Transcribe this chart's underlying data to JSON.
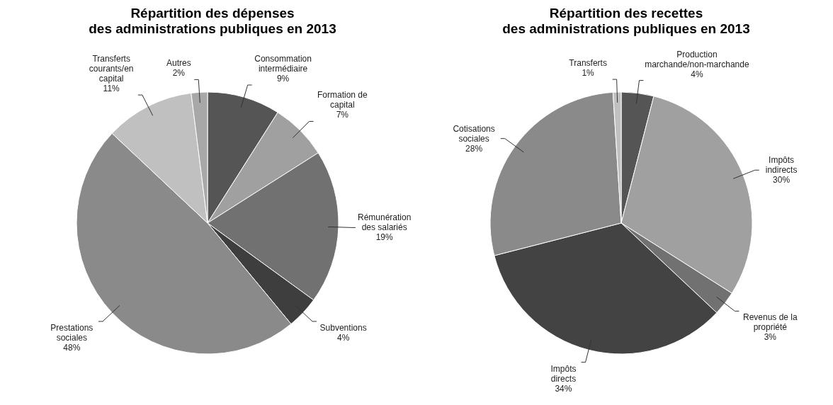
{
  "chart_data": [
    {
      "type": "pie",
      "title": "Répartition des dépenses\ndes administrations publiques en 2013",
      "categories": [
        "Consommation intermédiaire",
        "Formation de capital",
        "Rémunération des salariés",
        "Subventions",
        "Prestations sociales",
        "Transferts courants/en capital",
        "Autres"
      ],
      "values": [
        9,
        7,
        19,
        4,
        48,
        11,
        2
      ],
      "colors": [
        "#555555",
        "#a0a0a0",
        "#717171",
        "#3e3e3e",
        "#8a8a8a",
        "#c0c0c0",
        "#a8a8a8"
      ],
      "data_labels": true,
      "value_labels": [
        "9%",
        "7%",
        "19%",
        "4%",
        "48%",
        "11%",
        "2%"
      ]
    },
    {
      "type": "pie",
      "title": "Répartition des recettes\ndes administrations publiques en 2013",
      "categories": [
        "Production marchande/non-marchande",
        "Impôts indirects",
        "Revenus de la propriété",
        "Impôts directs",
        "Cotisations sociales",
        "Transferts"
      ],
      "values": [
        4,
        30,
        3,
        34,
        28,
        1
      ],
      "colors": [
        "#555555",
        "#a0a0a0",
        "#717171",
        "#434343",
        "#8a8a8a",
        "#c0c0c0"
      ],
      "data_labels": true,
      "value_labels": [
        "4%",
        "30%",
        "3%",
        "34%",
        "28%",
        "1%"
      ]
    }
  ]
}
